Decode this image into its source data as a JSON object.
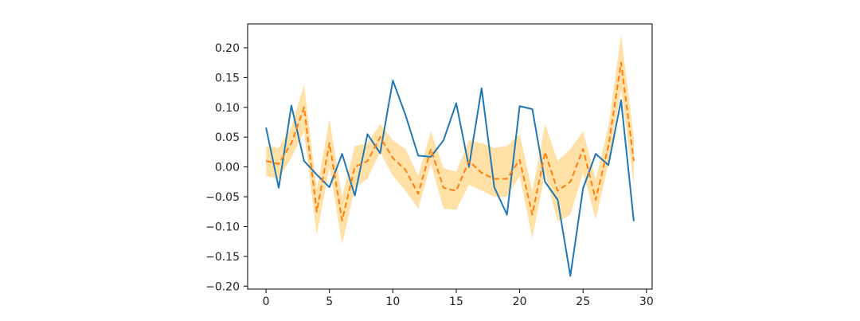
{
  "chart_data": {
    "type": "line",
    "title": "",
    "xlabel": "",
    "ylabel": "",
    "xlim": [
      -1.45,
      30.45
    ],
    "ylim": [
      -0.205,
      0.24
    ],
    "xticks": [
      0,
      5,
      10,
      15,
      20,
      25,
      30
    ],
    "yticks": [
      -0.2,
      -0.15,
      -0.1,
      -0.05,
      0.0,
      0.05,
      0.1,
      0.15,
      0.2
    ],
    "xtick_labels": [
      "0",
      "5",
      "10",
      "15",
      "20",
      "25",
      "30"
    ],
    "ytick_labels": [
      "−0.20",
      "−0.15",
      "−0.10",
      "−0.05",
      "0.00",
      "0.05",
      "0.10",
      "0.15",
      "0.20"
    ],
    "grid": false,
    "legend": "none",
    "x": [
      0,
      1,
      2,
      3,
      4,
      5,
      6,
      7,
      8,
      9,
      10,
      11,
      12,
      13,
      14,
      15,
      16,
      17,
      18,
      19,
      20,
      21,
      22,
      23,
      24,
      25,
      26,
      27,
      28,
      29
    ],
    "series": [
      {
        "style": "solid",
        "color": "#1f77b4",
        "values": [
          0.066,
          -0.035,
          0.103,
          0.01,
          -0.013,
          -0.034,
          0.022,
          -0.048,
          0.055,
          0.023,
          0.145,
          0.087,
          0.019,
          0.017,
          0.045,
          0.107,
          0.0,
          0.132,
          -0.034,
          -0.08,
          0.102,
          0.097,
          -0.025,
          -0.055,
          -0.183,
          -0.036,
          0.022,
          0.003,
          0.112,
          -0.091
        ]
      },
      {
        "style": "dashed",
        "color": "#ff7f0e",
        "values": [
          0.01,
          0.005,
          0.04,
          0.1,
          -0.075,
          0.04,
          -0.09,
          0.0,
          0.01,
          0.05,
          0.015,
          -0.005,
          -0.045,
          0.03,
          -0.035,
          -0.04,
          0.01,
          -0.01,
          -0.02,
          -0.02,
          0.012,
          -0.08,
          0.025,
          -0.04,
          -0.025,
          0.03,
          -0.055,
          0.035,
          0.175,
          0.01
        ],
        "band": {
          "color": "#ffc65c",
          "lower": [
            -0.015,
            -0.02,
            0.015,
            0.06,
            -0.115,
            0.0,
            -0.13,
            -0.035,
            -0.02,
            0.025,
            -0.015,
            -0.04,
            -0.07,
            0.005,
            -0.07,
            -0.072,
            -0.03,
            -0.04,
            -0.05,
            -0.05,
            -0.015,
            -0.12,
            -0.01,
            -0.092,
            -0.08,
            -0.01,
            -0.088,
            0.005,
            0.13,
            -0.03
          ],
          "upper": [
            0.035,
            0.032,
            0.068,
            0.138,
            -0.038,
            0.08,
            -0.05,
            0.035,
            0.04,
            0.072,
            0.045,
            0.03,
            -0.015,
            0.06,
            -0.002,
            -0.008,
            0.045,
            0.04,
            0.032,
            0.035,
            0.055,
            -0.04,
            0.072,
            0.01,
            0.03,
            0.06,
            -0.02,
            0.068,
            0.222,
            0.05
          ]
        }
      }
    ]
  }
}
